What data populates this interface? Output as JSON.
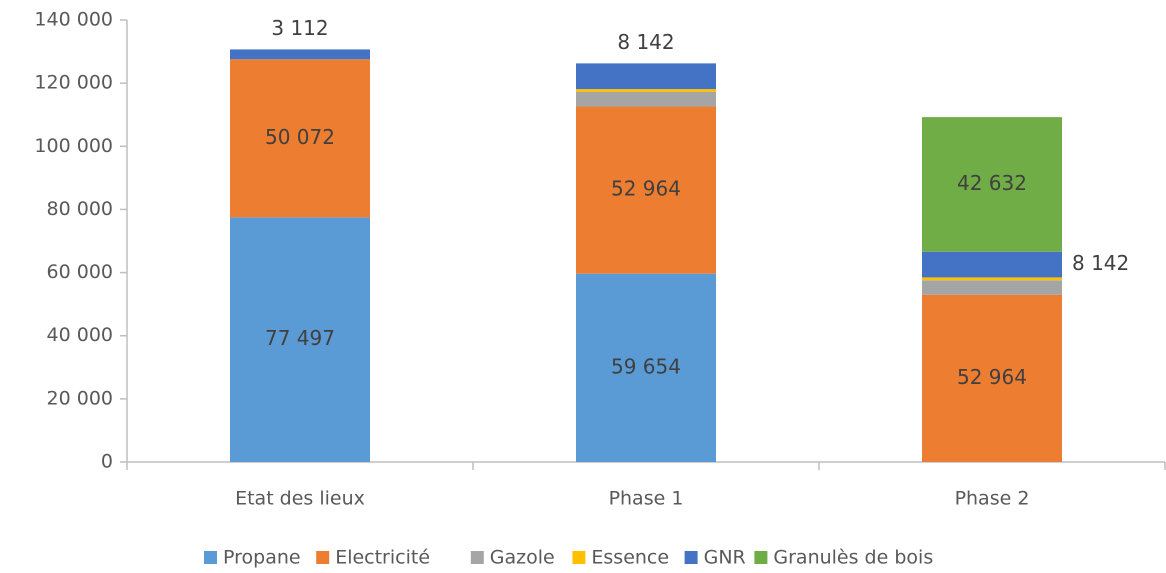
{
  "chart_data": {
    "type": "stacked_bar",
    "categories": [
      "Etat des lieux",
      "Phase 1",
      "Phase 2"
    ],
    "series": [
      {
        "name": "Propane",
        "color": "#5b9bd5",
        "values": [
          77497,
          59654,
          0
        ],
        "value_labels": [
          "77 497",
          "59 654",
          null
        ]
      },
      {
        "name": "Electricité",
        "color": "#ed7d31",
        "values": [
          50072,
          52964,
          52964
        ],
        "value_labels": [
          "50 072",
          "52 964",
          "52 964"
        ]
      },
      {
        "name": "Gazole",
        "color": "#a5a5a5",
        "values": [
          0,
          4600,
          4600
        ],
        "value_labels": [
          null,
          null,
          null
        ]
      },
      {
        "name": "Essence",
        "color": "#ffc000",
        "values": [
          0,
          900,
          900
        ],
        "value_labels": [
          null,
          null,
          null
        ]
      },
      {
        "name": "GNR",
        "color": "#4472c4",
        "values": [
          3112,
          8142,
          8142
        ],
        "value_labels": [
          "3 112",
          "8 142",
          "8 142"
        ]
      },
      {
        "name": "Granulès de bois",
        "color": "#70ad47",
        "values": [
          0,
          0,
          42632
        ],
        "value_labels": [
          null,
          null,
          "42 632"
        ]
      }
    ],
    "ylim": [
      0,
      140000
    ],
    "yticks": [
      0,
      {
        "value": 20000,
        "label": "20 000"
      },
      {
        "value": 40000,
        "label": "40 000"
      },
      {
        "value": 60000,
        "label": "60 000"
      },
      {
        "value": 80000,
        "label": "80 000"
      },
      {
        "value": 100000,
        "label": "100 000"
      },
      {
        "value": 120000,
        "label": "120 000"
      },
      {
        "value": 140000,
        "label": "140 000"
      }
    ],
    "legend": "bottom"
  }
}
